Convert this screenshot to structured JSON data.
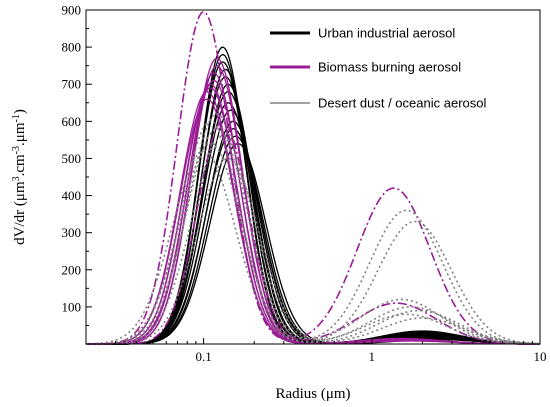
{
  "chart_data": {
    "type": "line",
    "xscale": "log",
    "xlim": [
      0.02,
      10
    ],
    "ylim": [
      0,
      900
    ],
    "xticks": [
      0.1,
      1,
      10
    ],
    "xtick_labels": [
      "0.1",
      "1",
      "10"
    ],
    "yticks": [
      100,
      200,
      300,
      400,
      500,
      600,
      700,
      800,
      900
    ],
    "ytick_labels": [
      "100",
      "200",
      "300",
      "400",
      "500",
      "600",
      "700",
      "800",
      "900"
    ],
    "xlabel": "Radius (μm)",
    "ylabel": {
      "main": "dV/dr (μm",
      "sup1": "3",
      "mid": ".cm",
      "sup2": "-3",
      "mid2": ".μm",
      "sup3": "-1",
      "end": ")"
    },
    "legend_position": "top-right",
    "grid": false,
    "series": [
      {
        "name": "Urban industrial aerosol",
        "color": "#000000",
        "style": "solid",
        "curves": [
          {
            "r1": 0.13,
            "p1": 800,
            "w1": 0.32,
            "r2": 2.0,
            "p2": 35,
            "w2": 0.55
          },
          {
            "r1": 0.13,
            "p1": 780,
            "w1": 0.32,
            "r2": 2.0,
            "p2": 32,
            "w2": 0.55
          },
          {
            "r1": 0.13,
            "p1": 760,
            "w1": 0.33,
            "r2": 2.0,
            "p2": 30,
            "w2": 0.55
          },
          {
            "r1": 0.135,
            "p1": 740,
            "w1": 0.33,
            "r2": 2.1,
            "p2": 28,
            "w2": 0.55
          },
          {
            "r1": 0.135,
            "p1": 720,
            "w1": 0.34,
            "r2": 2.1,
            "p2": 26,
            "w2": 0.55
          },
          {
            "r1": 0.14,
            "p1": 700,
            "w1": 0.34,
            "r2": 2.1,
            "p2": 25,
            "w2": 0.55
          },
          {
            "r1": 0.14,
            "p1": 680,
            "w1": 0.35,
            "r2": 2.2,
            "p2": 24,
            "w2": 0.55
          },
          {
            "r1": 0.14,
            "p1": 650,
            "w1": 0.35,
            "r2": 2.2,
            "p2": 22,
            "w2": 0.55
          },
          {
            "r1": 0.145,
            "p1": 630,
            "w1": 0.36,
            "r2": 2.2,
            "p2": 20,
            "w2": 0.55
          },
          {
            "r1": 0.15,
            "p1": 600,
            "w1": 0.36,
            "r2": 2.3,
            "p2": 18,
            "w2": 0.55
          },
          {
            "r1": 0.15,
            "p1": 580,
            "w1": 0.37,
            "r2": 2.3,
            "p2": 16,
            "w2": 0.55
          },
          {
            "r1": 0.155,
            "p1": 560,
            "w1": 0.37,
            "r2": 2.3,
            "p2": 14,
            "w2": 0.55
          },
          {
            "r1": 0.16,
            "p1": 540,
            "w1": 0.38,
            "r2": 2.4,
            "p2": 12,
            "w2": 0.55
          }
        ]
      },
      {
        "name": "Biomass burning aerosol",
        "color": "#9b1d96",
        "style": "solid",
        "curves": [
          {
            "r1": 0.12,
            "p1": 770,
            "w1": 0.35,
            "r2": 1.5,
            "p2": 15,
            "w2": 0.55
          },
          {
            "r1": 0.12,
            "p1": 750,
            "w1": 0.35,
            "r2": 1.5,
            "p2": 14,
            "w2": 0.55
          },
          {
            "r1": 0.115,
            "p1": 730,
            "w1": 0.35,
            "r2": 1.5,
            "p2": 13,
            "w2": 0.55
          },
          {
            "r1": 0.115,
            "p1": 710,
            "w1": 0.36,
            "r2": 1.6,
            "p2": 12,
            "w2": 0.55
          },
          {
            "r1": 0.11,
            "p1": 700,
            "w1": 0.36,
            "r2": 1.6,
            "p2": 11,
            "w2": 0.55
          },
          {
            "r1": 0.11,
            "p1": 690,
            "w1": 0.36,
            "r2": 1.6,
            "p2": 10,
            "w2": 0.55
          },
          {
            "r1": 0.105,
            "p1": 680,
            "w1": 0.37,
            "r2": 1.7,
            "p2": 9,
            "w2": 0.55
          },
          {
            "r1": 0.105,
            "p1": 660,
            "w1": 0.37,
            "r2": 1.7,
            "p2": 8,
            "w2": 0.55
          }
        ]
      },
      {
        "name": "Desert dust / oceanic aerosol",
        "color": "#808080",
        "style": "solid",
        "curves": []
      },
      {
        "name": "",
        "color": "#9b1d96",
        "style": "dashdot",
        "curves": [
          {
            "r1": 0.1,
            "p1": 895,
            "w1": 0.36,
            "r2": 1.35,
            "p2": 420,
            "w2": 0.5
          },
          {
            "r1": 0.13,
            "p1": 600,
            "w1": 0.35,
            "r2": 1.4,
            "p2": 110,
            "w2": 0.55
          }
        ]
      },
      {
        "name": "",
        "color": "#808080",
        "style": "dotted",
        "curves": [
          {
            "r1": 0.12,
            "p1": 620,
            "w1": 0.4,
            "r2": 1.6,
            "p2": 360,
            "w2": 0.5
          },
          {
            "r1": 0.11,
            "p1": 600,
            "w1": 0.4,
            "r2": 1.8,
            "p2": 330,
            "w2": 0.5
          },
          {
            "r1": 0.12,
            "p1": 580,
            "w1": 0.42,
            "r2": 1.5,
            "p2": 120,
            "w2": 0.55
          },
          {
            "r1": 0.13,
            "p1": 560,
            "w1": 0.42,
            "r2": 1.7,
            "p2": 100,
            "w2": 0.55
          },
          {
            "r1": 0.11,
            "p1": 540,
            "w1": 0.42,
            "r2": 1.9,
            "p2": 90,
            "w2": 0.55
          },
          {
            "r1": 0.1,
            "p1": 520,
            "w1": 0.43,
            "r2": 1.6,
            "p2": 80,
            "w2": 0.55
          },
          {
            "r1": 0.14,
            "p1": 500,
            "w1": 0.42,
            "r2": 2.0,
            "p2": 70,
            "w2": 0.55
          }
        ]
      }
    ]
  }
}
